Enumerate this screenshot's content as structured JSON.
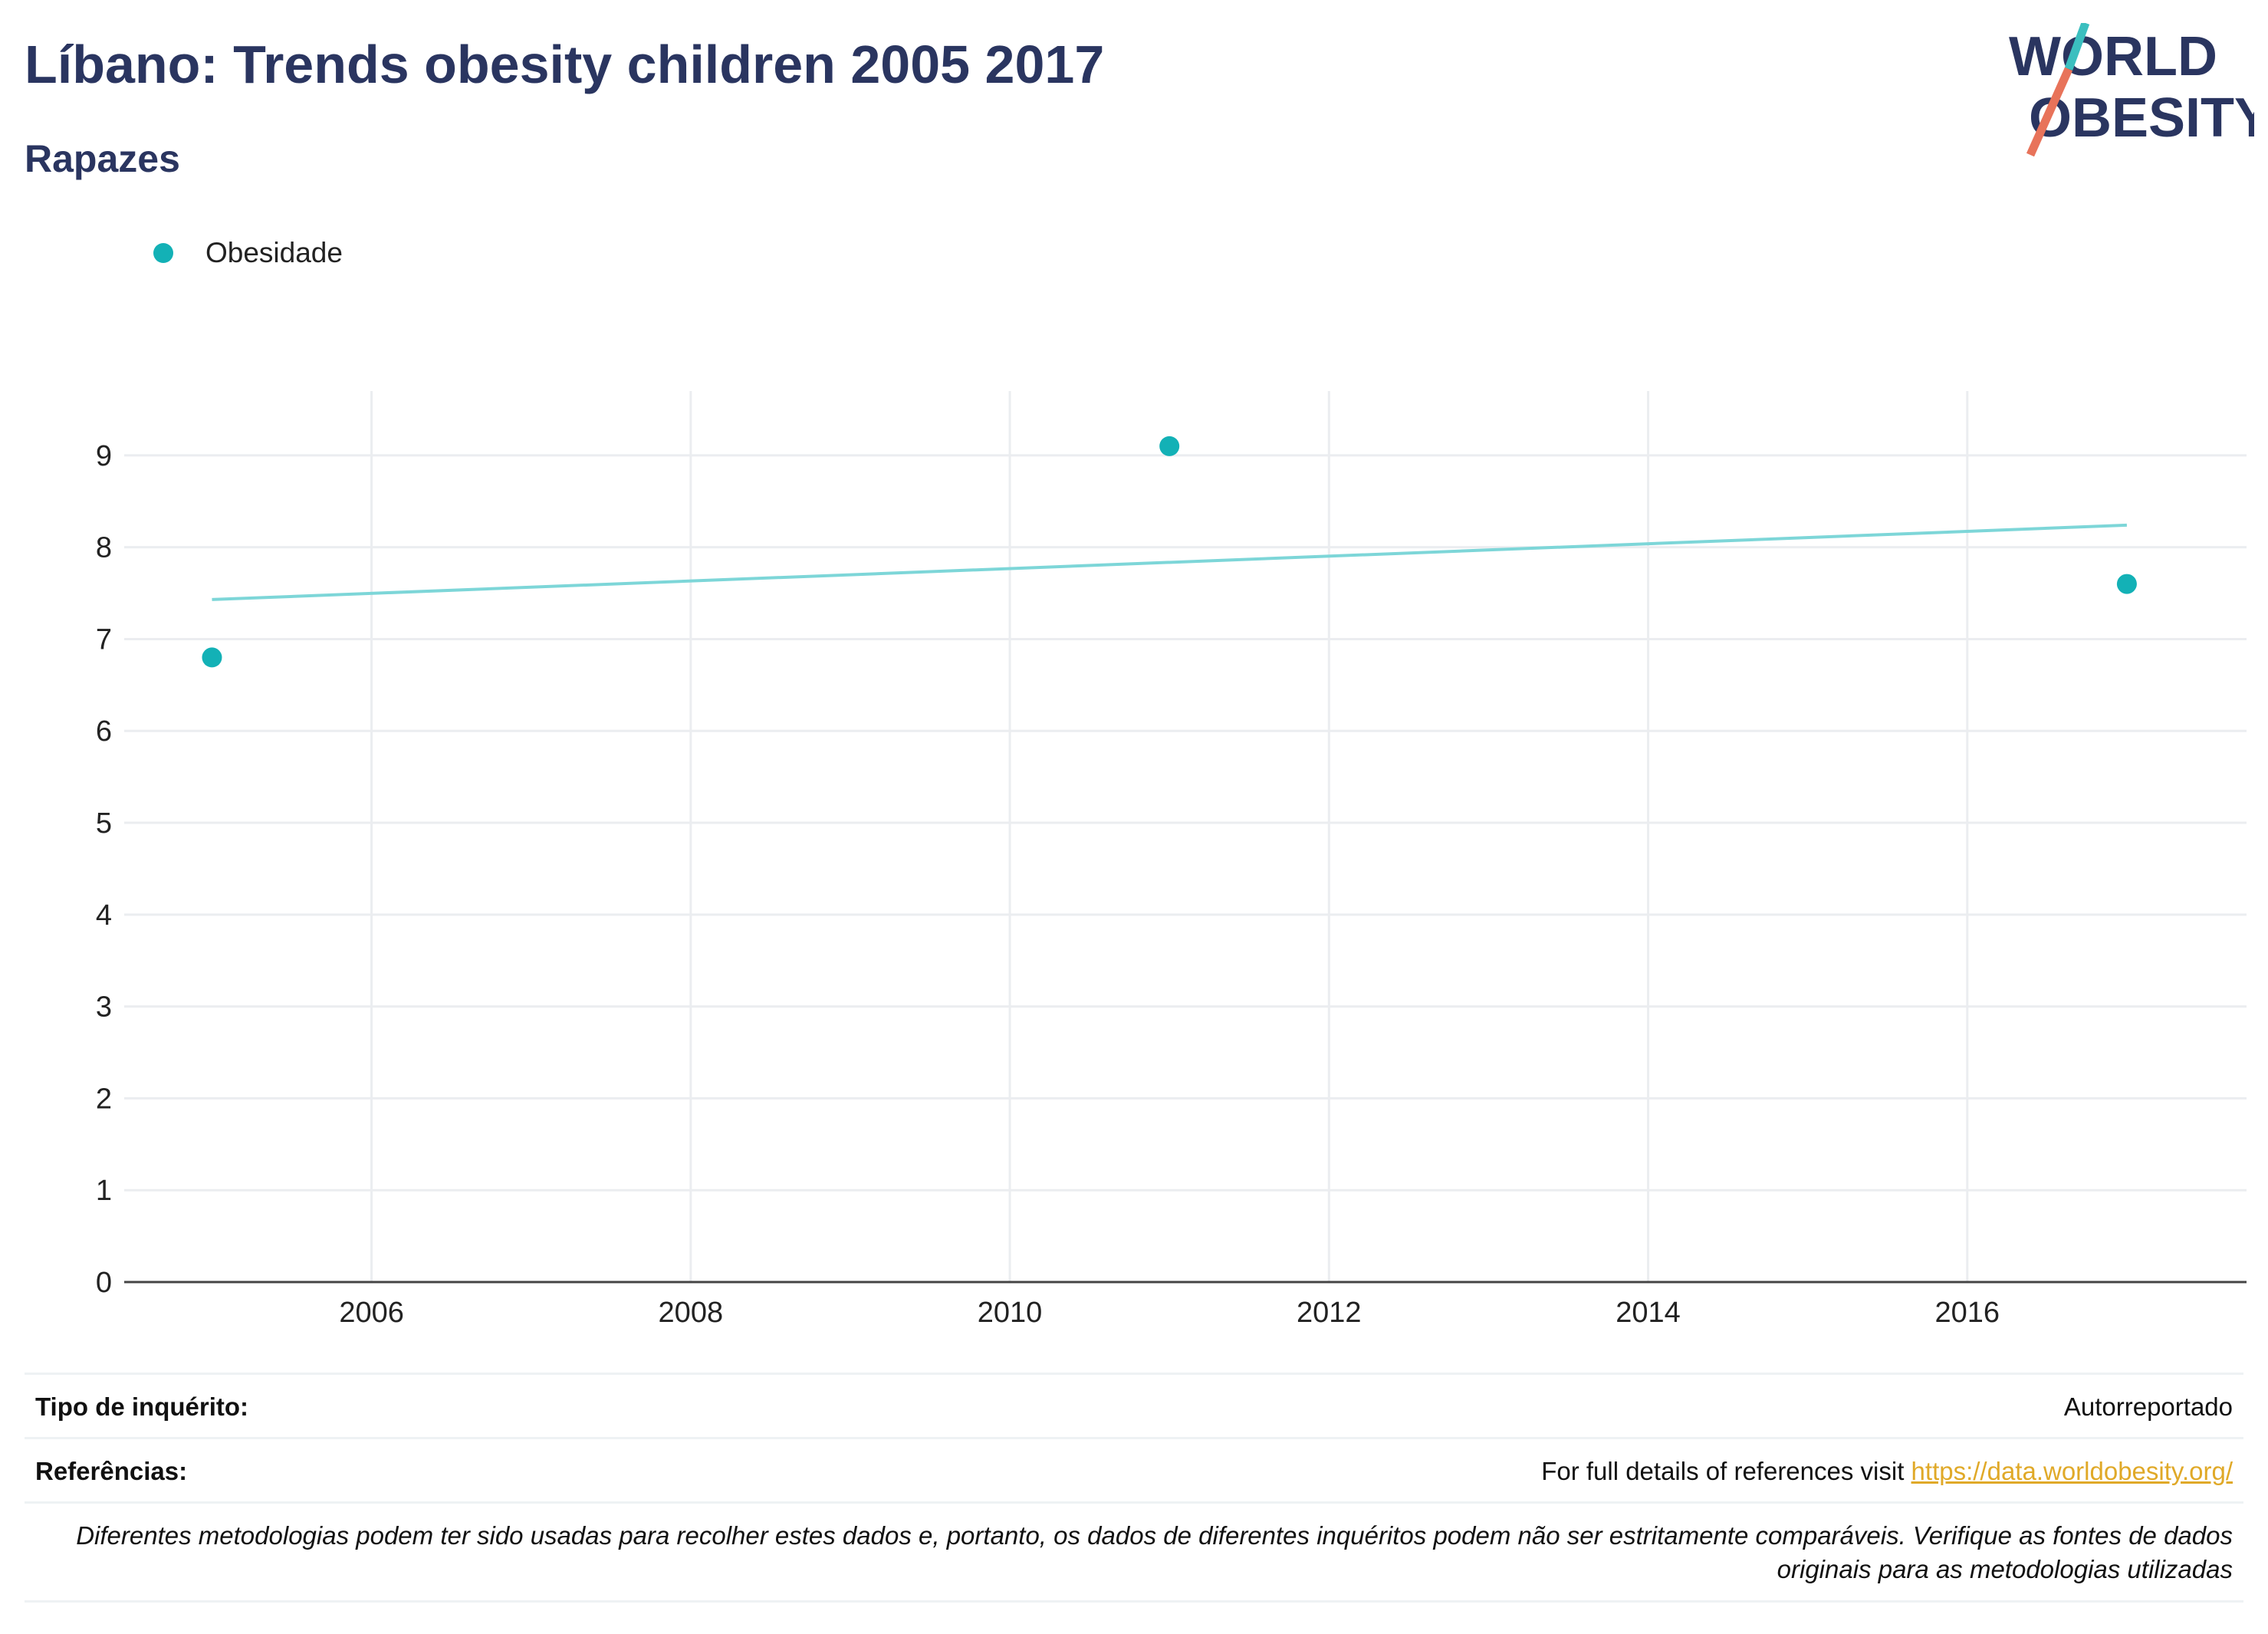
{
  "header": {
    "title": "Líbano: Trends obesity children 2005 2017",
    "subtitle": "Rapazes"
  },
  "logo": {
    "line1": "WORLD",
    "line2": "OBESITY",
    "colors": {
      "text": "#2a3560",
      "teal": "#3bbfbf",
      "coral": "#e8735a"
    }
  },
  "colors": {
    "series": "#13b1b6",
    "trend": "#7dd6d8",
    "grid": "#ebedf0",
    "axis": "#444444",
    "link": "#e0a928"
  },
  "chart_data": {
    "type": "scatter",
    "title": "",
    "xlabel": "",
    "ylabel": "",
    "xlim": [
      2004.45,
      2017.75
    ],
    "ylim": [
      0,
      9.7
    ],
    "x_ticks": [
      2006,
      2008,
      2010,
      2012,
      2014,
      2016
    ],
    "y_ticks": [
      0,
      1,
      2,
      3,
      4,
      5,
      6,
      7,
      8,
      9
    ],
    "grid": true,
    "legend_position": "top-left",
    "series": [
      {
        "name": "Obesidade",
        "x": [
          2005,
          2011,
          2017
        ],
        "y": [
          6.8,
          9.1,
          7.6
        ]
      }
    ],
    "trendline": {
      "x": [
        2005,
        2017
      ],
      "y": [
        7.43,
        8.24
      ]
    }
  },
  "info": {
    "survey_type_label": "Tipo de inquérito:",
    "survey_type_value": "Autorreportado",
    "references_label": "Referências:",
    "references_text": "For full details of references visit ",
    "references_link": "https://data.worldobesity.org/",
    "note": "Diferentes metodologias podem ter sido usadas para recolher estes dados e, portanto, os dados de diferentes inquéritos podem não ser estritamente comparáveis. Verifique as fontes de dados originais para as metodologias utilizadas"
  }
}
